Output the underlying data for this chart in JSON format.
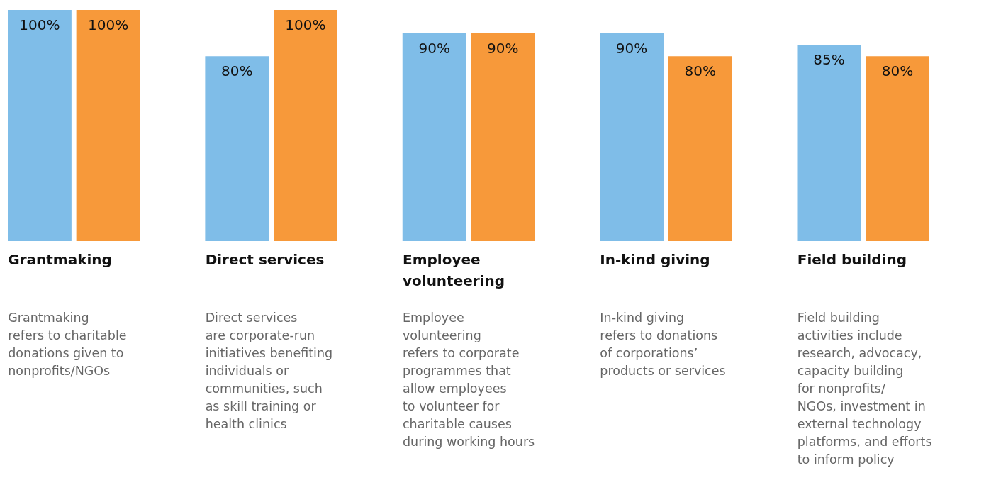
{
  "chart_data": {
    "type": "bar",
    "ylim": [
      0,
      100
    ],
    "categories": [
      "Grantmaking",
      "Direct services",
      "Employee volunteering",
      "In-kind giving",
      "Field building"
    ],
    "series": [
      {
        "color": "#7fbde8",
        "values": [
          100,
          80,
          90,
          90,
          85
        ],
        "value_labels": [
          "100%",
          "80%",
          "90%",
          "90%",
          "85%"
        ]
      },
      {
        "color": "#f7993a",
        "values": [
          100,
          100,
          90,
          80,
          80
        ],
        "value_labels": [
          "100%",
          "100%",
          "90%",
          "80%",
          "80%"
        ]
      }
    ],
    "annotations": [
      "Grantmaking\nrefers to charitable\ndonations given to\nnonprofits/NGOs",
      "Direct services\nare corporate-run\ninitiatives benefiting\nindividuals or\ncommunities, such\nas skill training or\nhealth clinics",
      "Employee\nvolunteering\nrefers to corporate\nprogrammes that\nallow employees\nto volunteer for\ncharitable causes\nduring working hours",
      "In-kind giving\nrefers to donations\nof corporations’\nproducts or services",
      "Field building\nactivities include\nresearch, advocacy,\ncapacity building\nfor nonprofits/\nNGOs, investment in\nexternal technology\nplatforms, and efforts\nto inform policy"
    ],
    "grid": false,
    "legend": false
  }
}
